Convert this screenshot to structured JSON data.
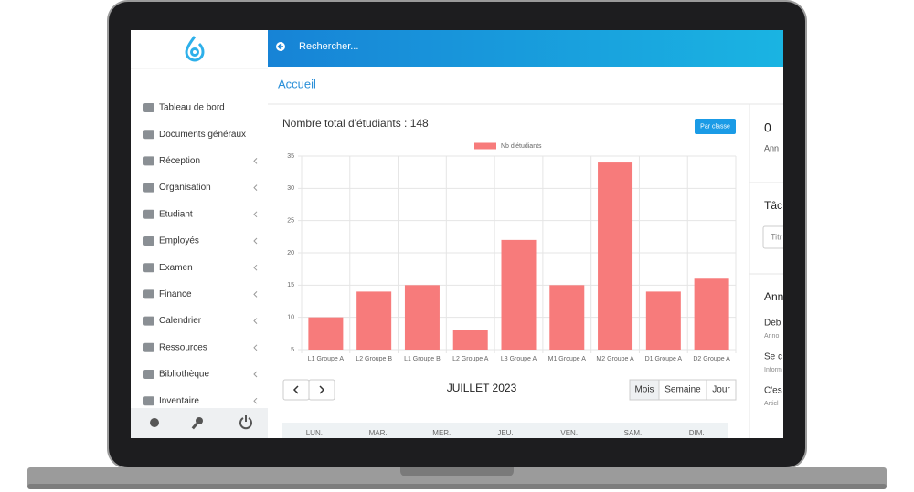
{
  "search_placeholder": "Rechercher...",
  "breadcrumb": "Accueil",
  "sidebar": {
    "menu": [
      "Tableau de bord",
      "Documents généraux",
      "Réception",
      "Organisation",
      "Etudiant",
      "Employés",
      "Examen",
      "Finance",
      "Calendrier",
      "Ressources",
      "Bibliothèque",
      "Inventaire"
    ]
  },
  "chart_button": "Par classe",
  "chart_data": {
    "type": "bar",
    "title": "Nombre total d'étudiants : 148",
    "categories": [
      "L1 Groupe A",
      "L2 Groupe B",
      "L1 Groupe B",
      "L2 Groupe A",
      "L3 Groupe A",
      "M1 Groupe A",
      "M2 Groupe A",
      "D1 Groupe A",
      "D2 Groupe A"
    ],
    "series": [
      {
        "name": "Nb d'étudiants",
        "color": "#f77b7b",
        "values": [
          10,
          14,
          15,
          8,
          22,
          15,
          34,
          14,
          16
        ]
      }
    ],
    "ylim": [
      5,
      35
    ],
    "yticks": [
      5,
      10,
      15,
      20,
      25,
      30,
      35
    ],
    "grid": true,
    "legend": "top"
  },
  "calendar": {
    "title": "JUILLET 2023",
    "views": [
      "Mois",
      "Semaine",
      "Jour"
    ],
    "weekdays": [
      "LUN.",
      "MAR.",
      "MER.",
      "JEU.",
      "VEN.",
      "SAM.",
      "DIM."
    ]
  },
  "right_panel": {
    "count": "0",
    "count_label": "Ann",
    "tasks_title": "Tâc",
    "input_placeholder": "Titr",
    "news_title": "Ann",
    "items": [
      {
        "title": "Déb",
        "sub": "Anno"
      },
      {
        "title": "Se c",
        "sub": "Inform"
      },
      {
        "title": "C'es",
        "sub": "Articl"
      }
    ]
  }
}
